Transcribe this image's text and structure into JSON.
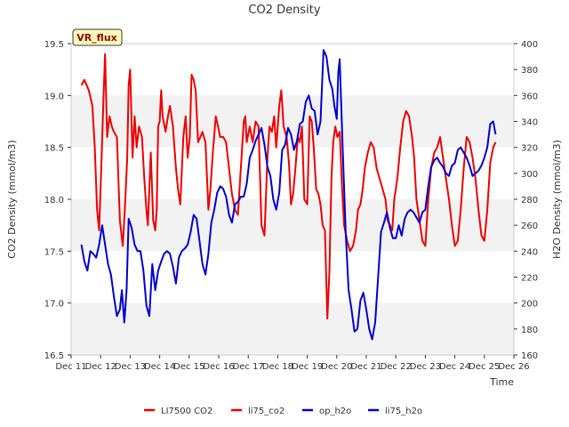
{
  "chart_data": {
    "type": "line",
    "title": "CO2 Density",
    "xlabel": "Time",
    "ylabel": "CO2 Density (mmol/m3)",
    "y2label": "H2O Density (mmol/m3)",
    "badge": "VR_flux",
    "xlim": [
      11,
      26
    ],
    "ylim": [
      16.5,
      19.5
    ],
    "y2lim": [
      160,
      400
    ],
    "x_ticks": [
      11,
      12,
      13,
      14,
      15,
      16,
      17,
      18,
      19,
      20,
      21,
      22,
      23,
      24,
      25,
      26
    ],
    "x_tick_labels": [
      "Dec 11",
      "Dec 12",
      "Dec 13",
      "Dec 14",
      "Dec 15",
      "Dec 16",
      "Dec 17",
      "Dec 18",
      "Dec 19",
      "Dec 20",
      "Dec 21",
      "Dec 22",
      "Dec 23",
      "Dec 24",
      "Dec 25",
      "Dec 26"
    ],
    "y_ticks": [
      16.5,
      17.0,
      17.5,
      18.0,
      18.5,
      19.0,
      19.5
    ],
    "y_tick_labels": [
      "16.5",
      "17.0",
      "17.5",
      "18.0",
      "18.5",
      "19.0",
      "19.5"
    ],
    "y2_ticks": [
      160,
      180,
      200,
      220,
      240,
      260,
      280,
      300,
      320,
      340,
      360,
      380,
      400
    ],
    "y2_tick_labels": [
      "160",
      "180",
      "200",
      "220",
      "240",
      "260",
      "280",
      "300",
      "320",
      "340",
      "360",
      "380",
      "400"
    ],
    "grid": "horizontal bands",
    "legend_position": "bottom",
    "legend": [
      {
        "label": "LI7500 CO2",
        "color": "#ee0000"
      },
      {
        "label": "li75_co2",
        "color": "#ee0000"
      },
      {
        "label": "op_h2o",
        "color": "#0000cc"
      },
      {
        "label": "li75_h2o",
        "color": "#0000cc"
      }
    ],
    "series": [
      {
        "name": "li75_co2",
        "axis": "left",
        "color": "#ee0000",
        "x": [
          11.35,
          11.45,
          11.6,
          11.72,
          11.8,
          11.88,
          11.95,
          12.02,
          12.1,
          12.15,
          12.22,
          12.3,
          12.38,
          12.45,
          12.55,
          12.65,
          12.75,
          12.82,
          12.9,
          12.95,
          13.0,
          13.08,
          13.15,
          13.22,
          13.3,
          13.4,
          13.48,
          13.55,
          13.6,
          13.7,
          13.78,
          13.85,
          13.9,
          13.95,
          14.0,
          14.05,
          14.1,
          14.2,
          14.28,
          14.35,
          14.45,
          14.55,
          14.62,
          14.7,
          14.8,
          14.88,
          14.95,
          15.02,
          15.08,
          15.15,
          15.22,
          15.3,
          15.38,
          15.45,
          15.55,
          15.65,
          15.72,
          15.8,
          15.9,
          15.98,
          16.05,
          16.15,
          16.25,
          16.35,
          16.45,
          16.55,
          16.65,
          16.75,
          16.85,
          16.9,
          16.95,
          17.05,
          17.15,
          17.25,
          17.35,
          17.45,
          17.55,
          17.65,
          17.72,
          17.8,
          17.88,
          17.95,
          18.05,
          18.12,
          18.2,
          18.3,
          18.38,
          18.45,
          18.52,
          18.6,
          18.68,
          18.75,
          18.82,
          18.9,
          19.0,
          19.08,
          19.15,
          19.22,
          19.3,
          19.38,
          19.45,
          19.52,
          19.6,
          19.68,
          19.75,
          19.82,
          19.88,
          19.95,
          20.02,
          20.1,
          20.18,
          20.25,
          20.35,
          20.45,
          20.55,
          20.65,
          20.72,
          20.8,
          20.88,
          20.95,
          21.05,
          21.15,
          21.25,
          21.35,
          21.45,
          21.55,
          21.65,
          21.72,
          21.8,
          21.88,
          21.95,
          22.05,
          22.15,
          22.25,
          22.35,
          22.45,
          22.55,
          22.62,
          22.7,
          22.8,
          22.9,
          23.0,
          23.1,
          23.2,
          23.3,
          23.4,
          23.5,
          23.6,
          23.7,
          23.8,
          23.9,
          24.0,
          24.1,
          24.2,
          24.3,
          24.4,
          24.5,
          24.6,
          24.7,
          24.8,
          24.9,
          25.0,
          25.1,
          25.2,
          25.3,
          25.38
        ],
        "y": [
          19.1,
          19.15,
          19.05,
          18.9,
          18.5,
          17.9,
          17.7,
          18.3,
          19.0,
          19.4,
          18.6,
          18.8,
          18.7,
          18.65,
          18.6,
          17.8,
          17.55,
          17.9,
          18.4,
          19.1,
          19.25,
          18.4,
          18.8,
          18.5,
          18.7,
          18.6,
          18.2,
          17.9,
          17.75,
          18.45,
          17.8,
          17.7,
          17.9,
          18.7,
          18.75,
          19.05,
          18.8,
          18.65,
          18.8,
          18.9,
          18.7,
          18.3,
          18.1,
          17.95,
          18.6,
          18.8,
          18.4,
          18.6,
          19.2,
          19.15,
          19.05,
          18.55,
          18.6,
          18.65,
          18.55,
          17.9,
          18.1,
          18.45,
          18.8,
          18.7,
          18.6,
          18.6,
          18.55,
          18.3,
          18.05,
          17.9,
          17.85,
          18.3,
          18.75,
          18.8,
          18.55,
          18.7,
          18.55,
          18.75,
          18.7,
          17.75,
          17.65,
          18.4,
          18.7,
          18.65,
          18.8,
          18.5,
          18.9,
          19.05,
          18.7,
          18.6,
          18.35,
          17.95,
          18.05,
          18.3,
          18.6,
          18.55,
          18.7,
          18.0,
          17.95,
          18.8,
          18.75,
          18.5,
          18.1,
          18.05,
          17.95,
          17.75,
          17.7,
          16.85,
          17.3,
          18.2,
          18.55,
          18.7,
          18.6,
          18.65,
          18.1,
          17.75,
          17.6,
          17.5,
          17.55,
          17.7,
          17.9,
          17.95,
          18.1,
          18.3,
          18.45,
          18.55,
          18.5,
          18.3,
          18.2,
          18.1,
          18.0,
          17.8,
          17.75,
          17.7,
          18.0,
          18.2,
          18.5,
          18.75,
          18.85,
          18.8,
          18.6,
          18.4,
          18.0,
          17.8,
          17.6,
          17.55,
          18.0,
          18.3,
          18.45,
          18.5,
          18.6,
          18.4,
          18.2,
          18.0,
          17.75,
          17.55,
          17.6,
          17.9,
          18.3,
          18.6,
          18.55,
          18.4,
          18.2,
          17.9,
          17.65,
          17.6,
          17.9,
          18.35,
          18.5,
          18.55
        ]
      },
      {
        "name": "li75_h2o",
        "axis": "right",
        "color": "#0000cc",
        "x": [
          11.35,
          11.45,
          11.55,
          11.65,
          11.75,
          11.85,
          11.95,
          12.05,
          12.15,
          12.25,
          12.35,
          12.45,
          12.55,
          12.65,
          12.72,
          12.8,
          12.88,
          12.95,
          13.05,
          13.15,
          13.25,
          13.35,
          13.45,
          13.55,
          13.65,
          13.75,
          13.85,
          13.95,
          14.05,
          14.15,
          14.25,
          14.35,
          14.45,
          14.55,
          14.65,
          14.75,
          14.85,
          14.95,
          15.05,
          15.15,
          15.25,
          15.35,
          15.45,
          15.55,
          15.65,
          15.75,
          15.85,
          15.95,
          16.05,
          16.15,
          16.25,
          16.35,
          16.45,
          16.55,
          16.65,
          16.75,
          16.85,
          16.95,
          17.05,
          17.15,
          17.25,
          17.35,
          17.45,
          17.55,
          17.65,
          17.75,
          17.85,
          17.95,
          18.05,
          18.15,
          18.25,
          18.35,
          18.45,
          18.55,
          18.65,
          18.75,
          18.85,
          18.95,
          19.05,
          19.15,
          19.25,
          19.35,
          19.45,
          19.55,
          19.65,
          19.75,
          19.85,
          19.92,
          20.0,
          20.05,
          20.1,
          20.2,
          20.3,
          20.4,
          20.5,
          20.6,
          20.7,
          20.8,
          20.9,
          21.0,
          21.1,
          21.2,
          21.3,
          21.4,
          21.5,
          21.6,
          21.7,
          21.8,
          21.9,
          22.0,
          22.1,
          22.2,
          22.3,
          22.4,
          22.5,
          22.6,
          22.7,
          22.8,
          22.9,
          23.0,
          23.1,
          23.2,
          23.3,
          23.4,
          23.5,
          23.6,
          23.7,
          23.8,
          23.9,
          24.0,
          24.1,
          24.2,
          24.3,
          24.4,
          24.5,
          24.6,
          24.7,
          24.8,
          24.9,
          25.0,
          25.1,
          25.2,
          25.3,
          25.38
        ],
        "y": [
          245,
          232,
          225,
          240,
          238,
          235,
          245,
          260,
          245,
          230,
          222,
          205,
          190,
          195,
          210,
          185,
          210,
          265,
          258,
          245,
          240,
          240,
          225,
          198,
          190,
          230,
          210,
          225,
          232,
          238,
          240,
          238,
          228,
          215,
          235,
          240,
          242,
          245,
          255,
          268,
          265,
          248,
          230,
          222,
          238,
          262,
          272,
          285,
          290,
          288,
          282,
          268,
          262,
          276,
          278,
          282,
          282,
          292,
          312,
          318,
          325,
          330,
          335,
          322,
          305,
          298,
          280,
          272,
          285,
          318,
          322,
          335,
          330,
          318,
          325,
          338,
          340,
          355,
          360,
          350,
          348,
          330,
          340,
          395,
          390,
          372,
          365,
          352,
          342,
          378,
          388,
          320,
          255,
          210,
          195,
          178,
          180,
          202,
          208,
          195,
          180,
          172,
          185,
          220,
          255,
          262,
          270,
          258,
          250,
          250,
          260,
          252,
          265,
          270,
          272,
          270,
          266,
          262,
          270,
          272,
          290,
          305,
          310,
          312,
          308,
          305,
          300,
          298,
          306,
          308,
          318,
          320,
          316,
          312,
          306,
          298,
          300,
          302,
          306,
          312,
          320,
          338,
          340,
          330
        ]
      }
    ]
  }
}
